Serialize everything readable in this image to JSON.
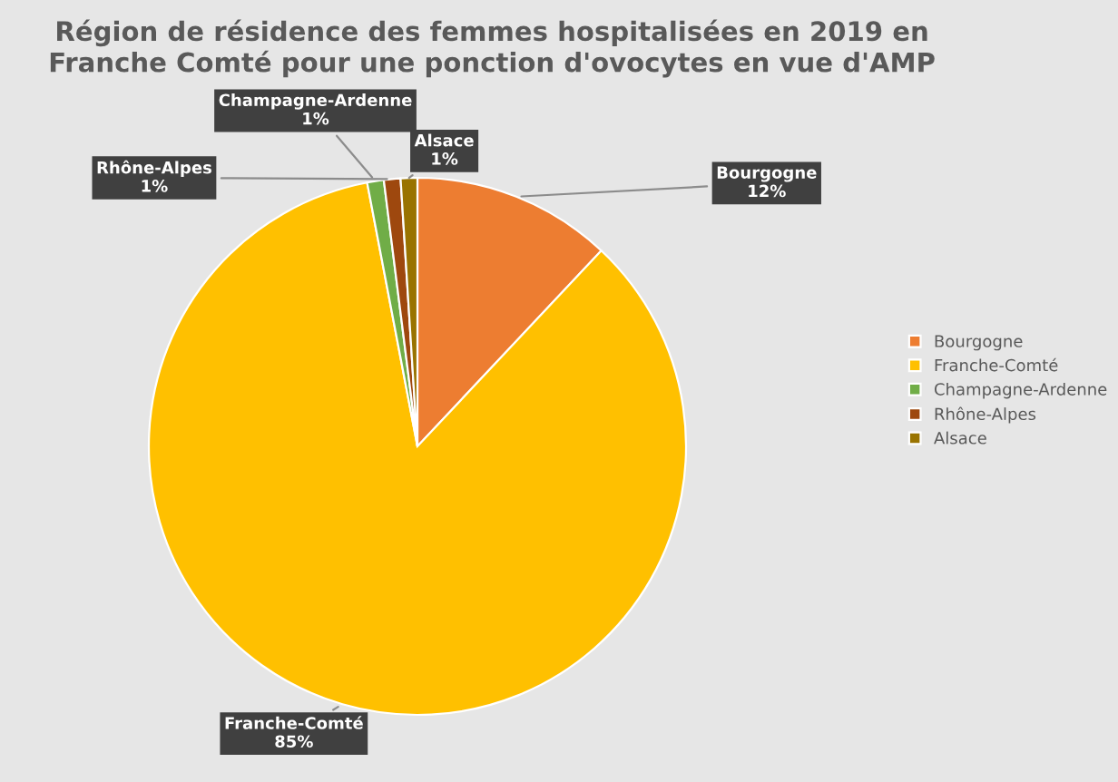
{
  "chart_data": {
    "type": "pie",
    "title": "Région de résidence des femmes hospitalisées en 2019 en\nFranche Comté pour une ponction d'ovocytes en vue d'AMP",
    "categories": [
      "Bourgogne",
      "Franche-Comté",
      "Champagne-Ardenne",
      "Rhône-Alpes",
      "Alsace"
    ],
    "values": [
      12,
      85,
      1,
      1,
      1
    ],
    "colors": [
      "#ed7d31",
      "#ffc000",
      "#70ad47",
      "#9e480e",
      "#997300"
    ],
    "value_labels": [
      "12%",
      "85%",
      "1%",
      "1%",
      "1%"
    ],
    "legend": "right"
  }
}
